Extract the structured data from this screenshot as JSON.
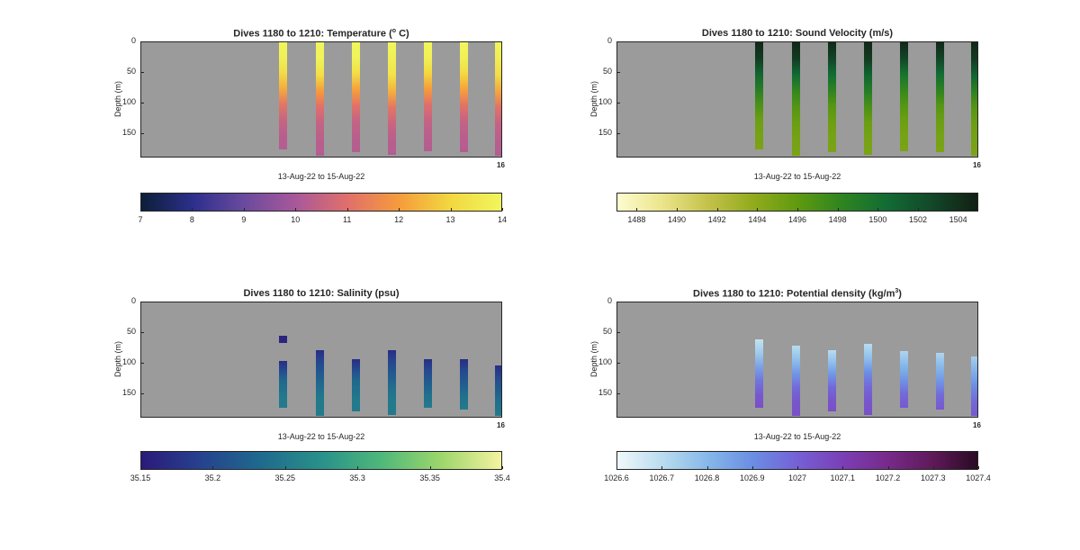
{
  "chart_data": [
    {
      "type": "heatmap",
      "title_prefix": "Dives 1180 to 1210: Temperature (",
      "title_sup": "o",
      "title_suffix": " C)",
      "ylabel": "Depth (m)",
      "xlabel": "13-Aug-22 to 15-Aug-22",
      "x_end_label": "16",
      "yticks": [
        "0",
        "50",
        "100",
        "150"
      ],
      "ylim": [
        0,
        190
      ],
      "colorbar": {
        "ticks": [
          "7",
          "8",
          "9",
          "10",
          "11",
          "12",
          "13",
          "14"
        ],
        "range": [
          7,
          14
        ],
        "colors": [
          "#0b1f38",
          "#2c2f8c",
          "#6a4a9e",
          "#a8589a",
          "#e06f6b",
          "#f59b3c",
          "#f2d740",
          "#f0f65c"
        ]
      },
      "profiles": [
        {
          "x": 0.393,
          "top": 0,
          "bottom": 176,
          "values": [
            14,
            13.8,
            13.2,
            12.3,
            11.2,
            10.6,
            10.3,
            10.2
          ]
        },
        {
          "x": 0.493,
          "top": 0,
          "bottom": 186,
          "values": [
            14,
            13.9,
            13.3,
            12.0,
            11.0,
            10.5,
            10.3,
            10.2
          ]
        },
        {
          "x": 0.593,
          "top": 0,
          "bottom": 180,
          "values": [
            14,
            13.9,
            13.2,
            12.1,
            11.1,
            10.5,
            10.3,
            10.2
          ]
        },
        {
          "x": 0.693,
          "top": 0,
          "bottom": 184,
          "values": [
            14,
            13.8,
            13.4,
            12.4,
            11.2,
            10.6,
            10.3,
            10.2
          ]
        },
        {
          "x": 0.793,
          "top": 0,
          "bottom": 178,
          "values": [
            14,
            13.8,
            13.0,
            12.0,
            11.0,
            10.5,
            10.3,
            10.2
          ]
        },
        {
          "x": 0.893,
          "top": 0,
          "bottom": 180,
          "values": [
            14,
            13.8,
            13.1,
            12.1,
            11.1,
            10.5,
            10.3,
            10.2
          ]
        },
        {
          "x": 0.993,
          "top": 0,
          "bottom": 186,
          "values": [
            14,
            13.7,
            13.2,
            12.2,
            11.1,
            10.5,
            10.3,
            10.2
          ]
        }
      ]
    },
    {
      "type": "heatmap",
      "title_prefix": "Dives 1180 to 1210: Sound Velocity (m/s)",
      "title_sup": "",
      "title_suffix": "",
      "ylabel": "Depth (m)",
      "xlabel": "13-Aug-22 to 15-Aug-22",
      "x_end_label": "16",
      "yticks": [
        "0",
        "50",
        "100",
        "150"
      ],
      "ylim": [
        0,
        190
      ],
      "colorbar": {
        "ticks": [
          "1488",
          "1490",
          "1492",
          "1494",
          "1496",
          "1498",
          "1500",
          "1502",
          "1504"
        ],
        "range": [
          1487,
          1505
        ],
        "colors": [
          "#fdfbd0",
          "#ebe58a",
          "#c4c24c",
          "#93ab1c",
          "#5f9a10",
          "#2e8420",
          "#116b34",
          "#134728",
          "#111f14"
        ]
      },
      "profiles": [
        {
          "x": 0.393,
          "top": 0,
          "bottom": 176,
          "values": [
            1504.5,
            1503.5,
            1501,
            1499,
            1497,
            1495.5,
            1495,
            1494.8
          ]
        },
        {
          "x": 0.493,
          "top": 0,
          "bottom": 186,
          "values": [
            1504.5,
            1503.5,
            1500.5,
            1498,
            1496.5,
            1495.5,
            1495,
            1494.8
          ]
        },
        {
          "x": 0.593,
          "top": 0,
          "bottom": 180,
          "values": [
            1504.5,
            1503,
            1500.5,
            1498.5,
            1496.5,
            1495.5,
            1495,
            1494.8
          ]
        },
        {
          "x": 0.693,
          "top": 0,
          "bottom": 184,
          "values": [
            1504.5,
            1503.5,
            1501,
            1499,
            1497,
            1495.5,
            1495,
            1494.8
          ]
        },
        {
          "x": 0.793,
          "top": 0,
          "bottom": 178,
          "values": [
            1504.5,
            1503,
            1500,
            1498,
            1496.5,
            1495.5,
            1495,
            1494.8
          ]
        },
        {
          "x": 0.893,
          "top": 0,
          "bottom": 180,
          "values": [
            1504.5,
            1503,
            1500.5,
            1498.5,
            1496.5,
            1495.5,
            1495,
            1494.8
          ]
        },
        {
          "x": 0.993,
          "top": 0,
          "bottom": 186,
          "values": [
            1504.5,
            1503.5,
            1501,
            1498.5,
            1496.5,
            1495.5,
            1495,
            1494.8
          ]
        }
      ]
    },
    {
      "type": "heatmap",
      "title_prefix": "Dives 1180 to 1210: Salinity (psu)",
      "title_sup": "",
      "title_suffix": "",
      "ylabel": "Depth (m)",
      "xlabel": "13-Aug-22 to 15-Aug-22",
      "x_end_label": "16",
      "yticks": [
        "0",
        "50",
        "100",
        "150"
      ],
      "ylim": [
        0,
        190
      ],
      "colorbar": {
        "ticks": [
          "35.15",
          "35.2",
          "35.25",
          "35.3",
          "35.35",
          "35.4"
        ],
        "range": [
          35.15,
          35.4
        ],
        "colors": [
          "#2b1a7a",
          "#26428f",
          "#1f6a8d",
          "#29918a",
          "#4fb87a",
          "#9dd66b",
          "#f5f3a0"
        ]
      },
      "profiles": [
        {
          "x": 0.393,
          "top": 95,
          "bottom": 172,
          "values": [
            35.17,
            35.2,
            35.23,
            35.24,
            35.25,
            35.25
          ]
        },
        {
          "x": 0.493,
          "top": 78,
          "bottom": 185,
          "values": [
            35.17,
            35.2,
            35.22,
            35.24,
            35.25,
            35.25
          ]
        },
        {
          "x": 0.593,
          "top": 93,
          "bottom": 178,
          "values": [
            35.17,
            35.2,
            35.23,
            35.24,
            35.25,
            35.25
          ]
        },
        {
          "x": 0.693,
          "top": 78,
          "bottom": 184,
          "values": [
            35.17,
            35.2,
            35.22,
            35.24,
            35.25,
            35.25
          ]
        },
        {
          "x": 0.793,
          "top": 93,
          "bottom": 173,
          "values": [
            35.17,
            35.2,
            35.22,
            35.24,
            35.25
          ]
        },
        {
          "x": 0.893,
          "top": 93,
          "bottom": 175,
          "values": [
            35.17,
            35.2,
            35.22,
            35.24,
            35.25
          ]
        },
        {
          "x": 0.993,
          "top": 103,
          "bottom": 186,
          "values": [
            35.17,
            35.2,
            35.22,
            35.24,
            35.25
          ]
        }
      ],
      "extra_marks": [
        {
          "x": 0.393,
          "top": 55,
          "bottom": 67,
          "value": 35.16
        }
      ]
    },
    {
      "type": "heatmap",
      "title_prefix": "Dives 1180 to 1210: Potential density (kg/m",
      "title_sup": "3",
      "title_suffix": ")",
      "ylabel": "Depth (m)",
      "xlabel": "13-Aug-22 to 15-Aug-22",
      "x_end_label": "16",
      "yticks": [
        "0",
        "50",
        "100",
        "150"
      ],
      "ylim": [
        0,
        190
      ],
      "colorbar": {
        "ticks": [
          "1026.6",
          "1026.7",
          "1026.8",
          "1026.9",
          "1027",
          "1027.1",
          "1027.2",
          "1027.3",
          "1027.4"
        ],
        "range": [
          1026.6,
          1027.4
        ],
        "colors": [
          "#f0f8fa",
          "#b9dcef",
          "#86b8ea",
          "#6b8ee3",
          "#7560d6",
          "#7b3fb5",
          "#772a8a",
          "#5f1a5a",
          "#2a0a22"
        ]
      },
      "profiles": [
        {
          "x": 0.393,
          "top": 60,
          "bottom": 172,
          "values": [
            1026.68,
            1026.75,
            1026.85,
            1026.95,
            1027.02,
            1027.05
          ]
        },
        {
          "x": 0.493,
          "top": 70,
          "bottom": 185,
          "values": [
            1026.7,
            1026.78,
            1026.88,
            1026.98,
            1027.03,
            1027.05
          ]
        },
        {
          "x": 0.593,
          "top": 78,
          "bottom": 178,
          "values": [
            1026.7,
            1026.78,
            1026.88,
            1026.98,
            1027.03,
            1027.05
          ]
        },
        {
          "x": 0.693,
          "top": 68,
          "bottom": 184,
          "values": [
            1026.7,
            1026.78,
            1026.9,
            1026.98,
            1027.03,
            1027.05
          ]
        },
        {
          "x": 0.793,
          "top": 80,
          "bottom": 173,
          "values": [
            1026.72,
            1026.8,
            1026.88,
            1026.98,
            1027.02
          ]
        },
        {
          "x": 0.893,
          "top": 82,
          "bottom": 175,
          "values": [
            1026.72,
            1026.8,
            1026.88,
            1026.98,
            1027.02
          ]
        },
        {
          "x": 0.993,
          "top": 88,
          "bottom": 186,
          "values": [
            1026.74,
            1026.82,
            1026.9,
            1026.98,
            1027.02
          ]
        }
      ]
    }
  ]
}
